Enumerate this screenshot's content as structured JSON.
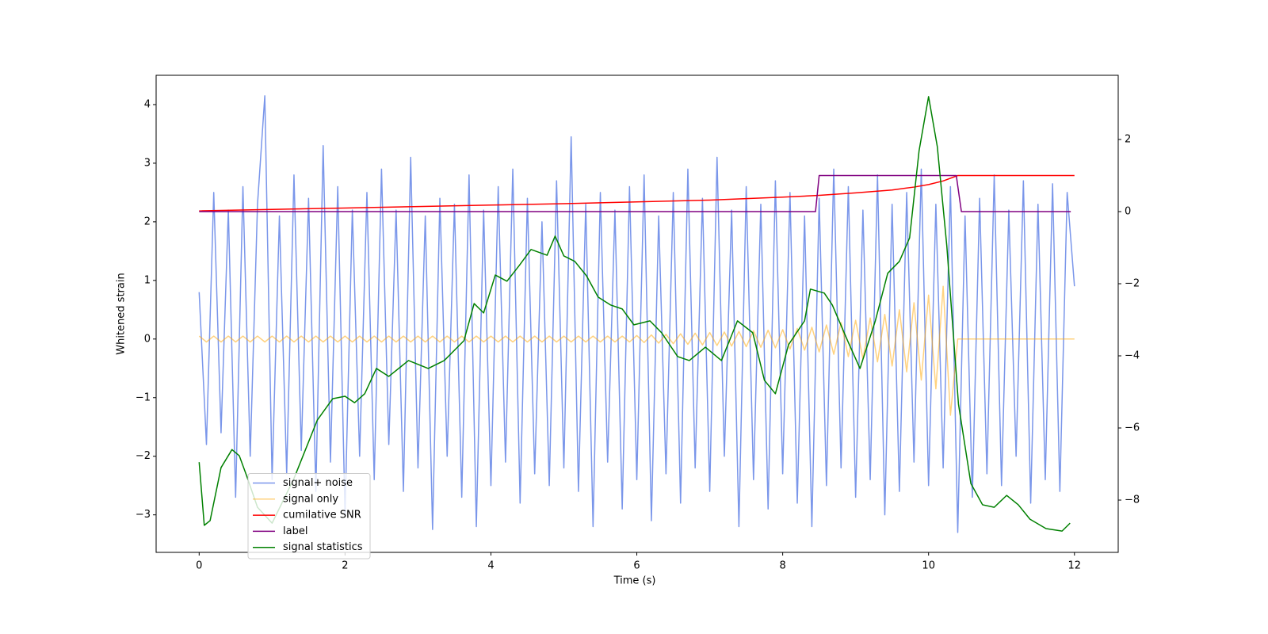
{
  "chart_data": {
    "type": "line",
    "x_label": "Time (s)",
    "y_label": "Whitened strain",
    "xlim": [
      -0.59,
      12.6
    ],
    "ylim": [
      -3.64,
      4.5
    ],
    "y2lim": [
      -9.45,
      3.78
    ],
    "xticks": [
      0,
      2,
      4,
      6,
      8,
      10,
      12
    ],
    "yticks": [
      {
        "value": -3,
        "label": "−3"
      },
      {
        "value": -2,
        "label": "−2"
      },
      {
        "value": -1,
        "label": "−1"
      },
      0,
      1,
      2,
      3,
      4
    ],
    "y2ticks": [
      {
        "value": -8,
        "label": "−8"
      },
      {
        "value": -6,
        "label": "−6"
      },
      {
        "value": -4,
        "label": "−4"
      },
      {
        "value": -2,
        "label": "−2"
      },
      0,
      2
    ],
    "legend": "lower left",
    "x": [
      0,
      0.1,
      0.2,
      0.3,
      0.4,
      0.5,
      0.6,
      0.7,
      0.8,
      0.9,
      1,
      1.1,
      1.2,
      1.3,
      1.4,
      1.5,
      1.6,
      1.7,
      1.8,
      1.9,
      2,
      2.1,
      2.2,
      2.3,
      2.4,
      2.5,
      2.6,
      2.7,
      2.8,
      2.9,
      3,
      3.1,
      3.2,
      3.3,
      3.4,
      3.5,
      3.6,
      3.7,
      3.8,
      3.9,
      4,
      4.1,
      4.2,
      4.3,
      4.4,
      4.5,
      4.6,
      4.7,
      4.8,
      4.9,
      5,
      5.1,
      5.2,
      5.3,
      5.4,
      5.5,
      5.6,
      5.7,
      5.8,
      5.9,
      6,
      6.1,
      6.2,
      6.3,
      6.4,
      6.5,
      6.6,
      6.7,
      6.8,
      6.9,
      7,
      7.1,
      7.2,
      7.3,
      7.4,
      7.5,
      7.6,
      7.7,
      7.8,
      7.9,
      8,
      8.1,
      8.2,
      8.3,
      8.4,
      8.5,
      8.6,
      8.7,
      8.8,
      8.9,
      9,
      9.1,
      9.2,
      9.3,
      9.4,
      9.5,
      9.6,
      9.7,
      9.8,
      9.9,
      10,
      10.1,
      10.2,
      10.3,
      10.4,
      10.5,
      10.6,
      10.7,
      10.8,
      10.9,
      11,
      11.1,
      11.2,
      11.3,
      11.4,
      11.5,
      11.6,
      11.7,
      11.8,
      11.9,
      12
    ],
    "series": [
      {
        "name": "signal+ noise",
        "color": "#4169e1",
        "alpha": 0.7,
        "axis": "y",
        "values": [
          0.8,
          -1.8,
          2.5,
          -1.6,
          2.2,
          -2.7,
          2.6,
          -2.0,
          2.3,
          4.15,
          -2.4,
          2.1,
          -2.3,
          2.8,
          -1.9,
          2.4,
          -2.6,
          3.3,
          -2.1,
          2.6,
          -3.0,
          2.2,
          -2.0,
          2.5,
          -2.4,
          2.9,
          -1.8,
          2.2,
          -2.6,
          3.1,
          -2.2,
          2.1,
          -3.25,
          2.4,
          -2.0,
          2.3,
          -2.7,
          2.8,
          -3.2,
          2.2,
          -2.5,
          2.6,
          -2.1,
          2.9,
          -2.8,
          2.4,
          -2.3,
          2.0,
          -2.5,
          2.7,
          -2.2,
          3.45,
          -2.6,
          2.3,
          -3.2,
          2.5,
          -2.1,
          2.2,
          -2.9,
          2.6,
          -2.4,
          2.8,
          -3.1,
          2.1,
          -2.3,
          2.5,
          -2.8,
          2.9,
          -2.2,
          2.4,
          -2.6,
          3.1,
          -2.0,
          2.2,
          -3.2,
          2.6,
          -2.4,
          2.3,
          -2.9,
          2.7,
          -2.3,
          2.5,
          -2.8,
          2.1,
          -3.2,
          2.4,
          -2.5,
          2.9,
          -2.2,
          2.6,
          -2.7,
          2.2,
          -2.4,
          2.8,
          -3.0,
          2.3,
          -2.6,
          2.5,
          -2.1,
          2.9,
          -2.5,
          2.3,
          -2.2,
          2.6,
          -3.3,
          2.1,
          -2.7,
          2.4,
          -2.3,
          2.8,
          -2.5,
          2.2,
          -2.0,
          2.7,
          -2.8,
          2.3,
          -2.4,
          2.65,
          -2.6,
          2.5,
          0.9
        ]
      },
      {
        "name": "signal only",
        "color": "#ffa500",
        "alpha": 0.5,
        "axis": "y",
        "values": [
          0.05,
          -0.05,
          0.05,
          -0.05,
          0.05,
          -0.05,
          0.05,
          -0.05,
          0.05,
          -0.05,
          0.05,
          -0.05,
          0.05,
          -0.05,
          0.05,
          -0.05,
          0.05,
          -0.05,
          0.05,
          -0.05,
          0.05,
          -0.05,
          0.05,
          -0.05,
          0.05,
          -0.05,
          0.05,
          -0.05,
          0.05,
          -0.05,
          0.05,
          -0.05,
          0.05,
          -0.05,
          0.05,
          -0.05,
          0.05,
          -0.05,
          0.05,
          -0.05,
          0.05,
          -0.05,
          0.05,
          -0.05,
          0.05,
          -0.05,
          0.05,
          -0.05,
          0.05,
          -0.05,
          0.05,
          -0.05,
          0.05,
          -0.05,
          0.05,
          -0.05,
          0.05,
          -0.05,
          0.05,
          -0.05,
          0.06,
          -0.06,
          0.07,
          -0.07,
          0.08,
          -0.08,
          0.09,
          -0.09,
          0.1,
          -0.1,
          0.11,
          -0.11,
          0.12,
          -0.12,
          0.13,
          -0.13,
          0.14,
          -0.14,
          0.15,
          -0.15,
          0.16,
          -0.17,
          0.18,
          -0.19,
          0.2,
          -0.22,
          0.24,
          -0.26,
          0.28,
          -0.3,
          0.32,
          -0.34,
          0.36,
          -0.39,
          0.42,
          -0.46,
          0.5,
          -0.56,
          0.62,
          -0.7,
          0.75,
          -0.85,
          0.9,
          -1.3,
          0,
          0,
          0,
          0,
          0,
          0,
          0,
          0,
          0,
          0,
          0,
          0,
          0,
          0,
          0,
          0,
          0
        ]
      },
      {
        "name": "cumilative SNR",
        "color": "#ff0000",
        "axis": "y2",
        "x": [
          0,
          1,
          2,
          3,
          4,
          5,
          6,
          7,
          8,
          8.5,
          9,
          9.5,
          9.8,
          10,
          10.2,
          10.4,
          12
        ],
        "values": [
          0.02,
          0.06,
          0.1,
          0.14,
          0.18,
          0.22,
          0.27,
          0.32,
          0.4,
          0.45,
          0.52,
          0.6,
          0.68,
          0.75,
          0.85,
          1.0,
          1.0
        ]
      },
      {
        "name": "label",
        "color": "#800080",
        "axis": "y2",
        "x": [
          0,
          8.45,
          8.5,
          10.38,
          10.45,
          11.95
        ],
        "values": [
          0,
          0,
          1,
          1,
          0,
          0
        ]
      },
      {
        "name": "signal statistics",
        "color": "#008000",
        "axis": "y2",
        "x": [
          0,
          0.07,
          0.15,
          0.3,
          0.45,
          0.55,
          0.65,
          0.8,
          1.0,
          1.3,
          1.62,
          1.83,
          2.0,
          2.13,
          2.27,
          2.43,
          2.6,
          2.87,
          3.14,
          3.36,
          3.63,
          3.77,
          3.9,
          4.06,
          4.22,
          4.39,
          4.55,
          4.77,
          4.88,
          5.0,
          5.15,
          5.31,
          5.47,
          5.64,
          5.8,
          5.96,
          6.18,
          6.34,
          6.56,
          6.72,
          6.94,
          7.16,
          7.38,
          7.59,
          7.75,
          7.9,
          8.08,
          8.3,
          8.38,
          8.57,
          8.68,
          8.89,
          9.06,
          9.27,
          9.44,
          9.6,
          9.74,
          9.87,
          10.0,
          10.12,
          10.25,
          10.41,
          10.58,
          10.74,
          10.9,
          11.07,
          11.23,
          11.39,
          11.61,
          11.83,
          11.94
        ],
        "values": [
          -6.95,
          -8.7,
          -8.57,
          -7.1,
          -6.6,
          -6.77,
          -7.32,
          -8.2,
          -8.64,
          -7.4,
          -5.78,
          -5.19,
          -5.12,
          -5.3,
          -5.05,
          -4.35,
          -4.57,
          -4.13,
          -4.35,
          -4.13,
          -3.58,
          -2.55,
          -2.81,
          -1.76,
          -1.93,
          -1.49,
          -1.05,
          -1.21,
          -0.68,
          -1.23,
          -1.38,
          -1.78,
          -2.37,
          -2.59,
          -2.7,
          -3.14,
          -3.03,
          -3.36,
          -4.02,
          -4.13,
          -3.76,
          -4.13,
          -3.03,
          -3.36,
          -4.68,
          -5.05,
          -3.69,
          -3.03,
          -2.15,
          -2.26,
          -2.59,
          -3.58,
          -4.35,
          -3.03,
          -1.71,
          -1.38,
          -0.73,
          1.69,
          3.19,
          1.8,
          -0.95,
          -5.34,
          -7.54,
          -8.13,
          -8.2,
          -7.87,
          -8.13,
          -8.53,
          -8.79,
          -8.86,
          -8.64
        ]
      }
    ]
  }
}
